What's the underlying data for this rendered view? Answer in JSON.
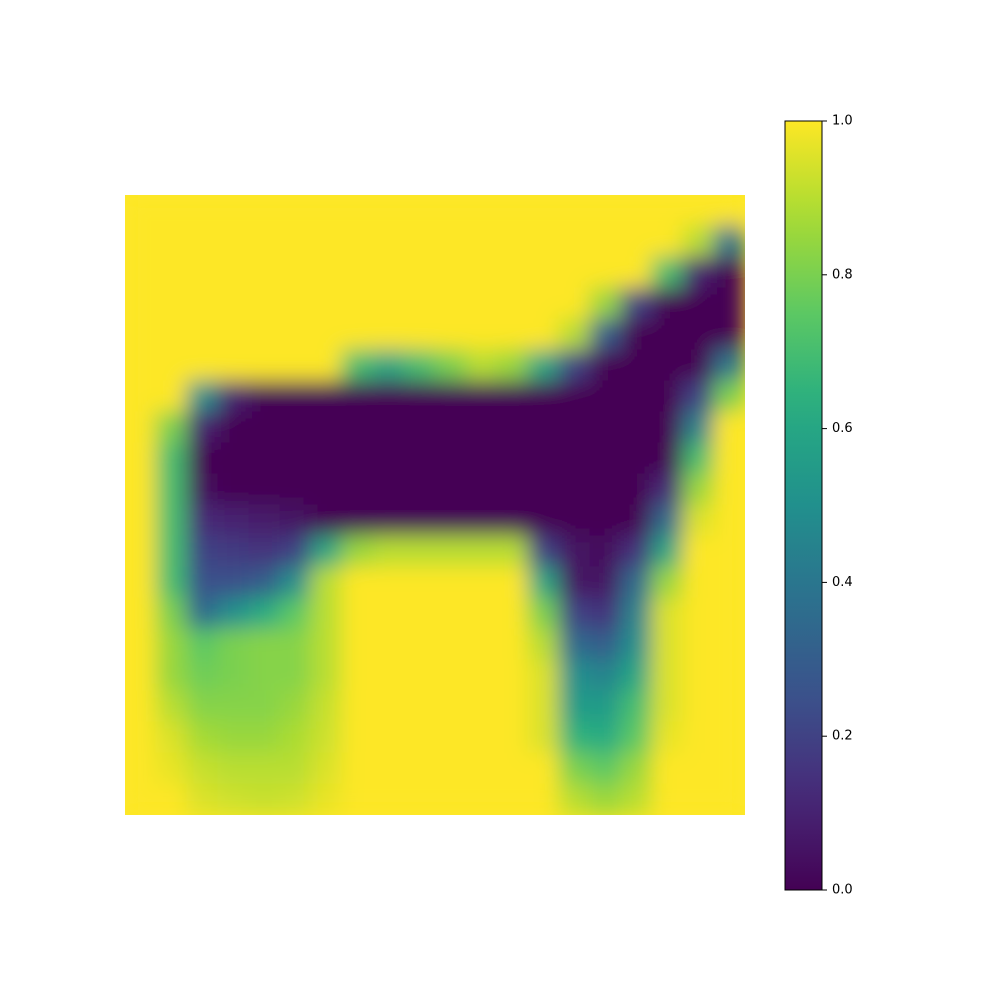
{
  "chart_data": {
    "type": "heatmap",
    "title": "",
    "xlabel": "",
    "ylabel": "",
    "axes_visible": false,
    "colormap": "viridis",
    "colorbar": {
      "vmin": 0.0,
      "vmax": 1.0,
      "ticks": [
        0.0,
        0.2,
        0.4,
        0.6,
        0.8,
        1.0
      ],
      "tick_labels": [
        "0.0",
        "0.2",
        "0.4",
        "0.6",
        "0.8",
        "1.0"
      ],
      "location": "right"
    },
    "grid_size": [
      20,
      20
    ],
    "values": [
      [
        1,
        1,
        1,
        1,
        1,
        1,
        1,
        1,
        1,
        1,
        1,
        1,
        1,
        1,
        1,
        1,
        1,
        1,
        1,
        1
      ],
      [
        1,
        1,
        1,
        1,
        1,
        1,
        1,
        1,
        1,
        1,
        1,
        1,
        1,
        1,
        1,
        1,
        1,
        1,
        0.9,
        0.4
      ],
      [
        1,
        1,
        1,
        1,
        1,
        1,
        1,
        1,
        1,
        1,
        1,
        1,
        1,
        1,
        1,
        1,
        1,
        0.7,
        0.1,
        0
      ],
      [
        1,
        1,
        1,
        1,
        1,
        1,
        1,
        1,
        1,
        1,
        1,
        1,
        1,
        1,
        1,
        0.85,
        0.2,
        0,
        0,
        0
      ],
      [
        1,
        1,
        1,
        1,
        1,
        1,
        1,
        1,
        1,
        1,
        1,
        1,
        1,
        1,
        0.9,
        0.3,
        0,
        0,
        0,
        0
      ],
      [
        1,
        1,
        1,
        1,
        1,
        1,
        1,
        0.7,
        0.6,
        0.7,
        0.8,
        0.9,
        0.85,
        0.6,
        0.2,
        0,
        0,
        0,
        0,
        0.4
      ],
      [
        1,
        1,
        0.5,
        0.1,
        0,
        0,
        0,
        0,
        0,
        0,
        0,
        0,
        0,
        0,
        0,
        0,
        0,
        0,
        0.2,
        0.8
      ],
      [
        1,
        0.8,
        0.1,
        0,
        0,
        0,
        0,
        0,
        0,
        0,
        0,
        0,
        0,
        0,
        0,
        0,
        0,
        0,
        0.45,
        1
      ],
      [
        1,
        0.7,
        0,
        0,
        0,
        0,
        0,
        0,
        0,
        0,
        0,
        0,
        0,
        0,
        0,
        0,
        0,
        0,
        0.7,
        1
      ],
      [
        1,
        0.7,
        0.03,
        0,
        0,
        0,
        0,
        0,
        0,
        0,
        0,
        0,
        0,
        0,
        0,
        0,
        0,
        0.12,
        0.85,
        1
      ],
      [
        1,
        0.7,
        0.12,
        0.1,
        0.08,
        0.05,
        0,
        0,
        0,
        0,
        0,
        0,
        0,
        0,
        0,
        0,
        0,
        0.35,
        0.95,
        1
      ],
      [
        1,
        0.7,
        0.2,
        0.18,
        0.15,
        0.2,
        0.6,
        0.85,
        0.9,
        0.9,
        0.9,
        0.9,
        0.9,
        0.2,
        0.05,
        0.03,
        0.15,
        0.6,
        1,
        1
      ],
      [
        1,
        0.7,
        0.25,
        0.25,
        0.3,
        0.5,
        0.9,
        1,
        1,
        1,
        1,
        1,
        1,
        0.6,
        0.05,
        0.05,
        0.35,
        0.85,
        1,
        1
      ],
      [
        1,
        0.8,
        0.35,
        0.5,
        0.62,
        0.75,
        0.9,
        1,
        1,
        1,
        1,
        1,
        1,
        0.8,
        0.2,
        0.15,
        0.45,
        0.95,
        1,
        1
      ],
      [
        1,
        0.85,
        0.75,
        0.8,
        0.82,
        0.82,
        0.9,
        1,
        1,
        1,
        1,
        1,
        1,
        0.9,
        0.35,
        0.3,
        0.5,
        0.95,
        1,
        1
      ],
      [
        1,
        0.85,
        0.78,
        0.8,
        0.82,
        0.82,
        0.9,
        1,
        1,
        1,
        1,
        1,
        1,
        0.95,
        0.5,
        0.45,
        0.6,
        0.95,
        1,
        1
      ],
      [
        1,
        0.9,
        0.82,
        0.82,
        0.82,
        0.85,
        0.92,
        1,
        1,
        1,
        1,
        1,
        1,
        0.95,
        0.55,
        0.55,
        0.7,
        0.95,
        1,
        1
      ],
      [
        1,
        0.95,
        0.87,
        0.85,
        0.85,
        0.88,
        0.93,
        1,
        1,
        1,
        1,
        1,
        1,
        0.95,
        0.65,
        0.62,
        0.75,
        0.97,
        1,
        1
      ],
      [
        1,
        0.97,
        0.92,
        0.9,
        0.9,
        0.9,
        0.95,
        1,
        1,
        1,
        1,
        1,
        1,
        1,
        0.8,
        0.75,
        0.85,
        1,
        1,
        1
      ],
      [
        1,
        1,
        0.95,
        0.93,
        0.92,
        0.93,
        0.97,
        1,
        1,
        1,
        1,
        1,
        1,
        1,
        0.9,
        0.85,
        0.9,
        1,
        1,
        1
      ]
    ]
  }
}
